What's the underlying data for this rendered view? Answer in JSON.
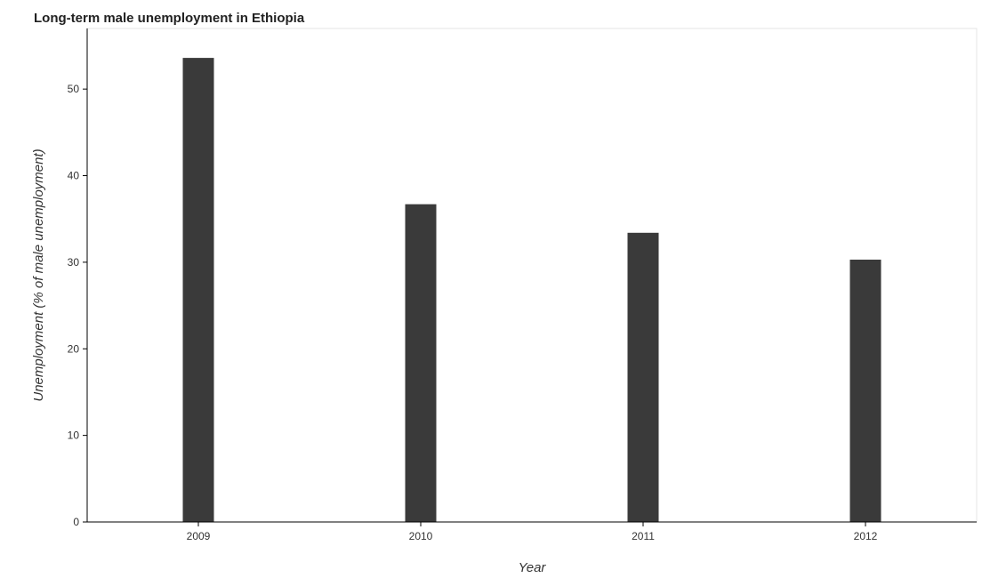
{
  "chart_data": {
    "type": "bar",
    "title": "Long-term male unemployment in Ethiopia",
    "xlabel": "Year",
    "ylabel": "Unemployment (% of male unemployment)",
    "categories": [
      "2009",
      "2010",
      "2011",
      "2012"
    ],
    "values": [
      53.6,
      36.7,
      33.4,
      30.3
    ],
    "ylim": [
      0,
      57
    ],
    "yticks": [
      0,
      10,
      20,
      30,
      40,
      50
    ],
    "grid": false,
    "legend": "none",
    "bar_color": "#3a3a3a"
  }
}
